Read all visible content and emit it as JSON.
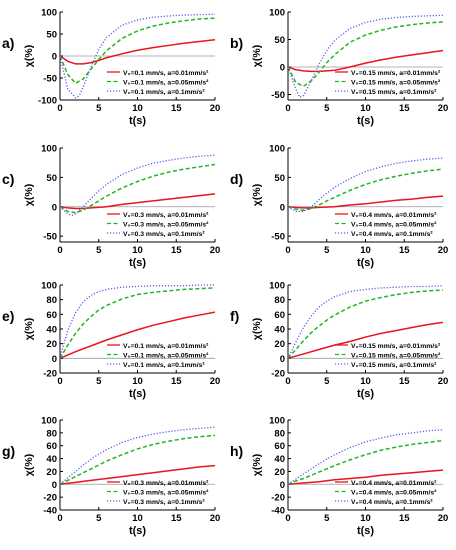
{
  "figure": {
    "colors": {
      "red": "#e8141e",
      "green": "#22b422",
      "blue": "#5a5af0",
      "axis": "#000000"
    }
  },
  "chart_data": [
    {
      "panel": "a)",
      "type": "line",
      "xlabel": "t(s)",
      "ylabel": "χ(%)",
      "xlim": [
        0,
        20
      ],
      "ylim": [
        -100,
        100
      ],
      "xticks": [
        0,
        5,
        10,
        15,
        20
      ],
      "yticks": [
        -100,
        -50,
        0,
        50,
        100
      ],
      "zero_line": true,
      "series": [
        {
          "name": "V₀=0.1 mm/s, a=0.01mm/s²",
          "style": "solid-red",
          "x": [
            0,
            1,
            2,
            3,
            4,
            5,
            6,
            8,
            10,
            12,
            14,
            16,
            18,
            20
          ],
          "y": [
            0,
            -12,
            -18,
            -18,
            -15,
            -10,
            -4,
            5,
            13,
            19,
            24,
            29,
            33,
            37
          ]
        },
        {
          "name": "V₀=0.1 mm/s, a=0.05mm/s²",
          "style": "dashed-green",
          "x": [
            0,
            1,
            2,
            3,
            4,
            5,
            6,
            8,
            10,
            12,
            14,
            16,
            18,
            20
          ],
          "y": [
            0,
            -42,
            -62,
            -52,
            -30,
            -8,
            12,
            40,
            57,
            68,
            75,
            80,
            84,
            86
          ]
        },
        {
          "name": "V₀=0.1 mm/s, a=0.1mm/s²",
          "style": "dotted-blue",
          "x": [
            0,
            1,
            2,
            2.5,
            3,
            4,
            5,
            6,
            8,
            10,
            12,
            14,
            16,
            18,
            20
          ],
          "y": [
            0,
            -75,
            -95,
            -90,
            -70,
            -25,
            15,
            42,
            70,
            82,
            88,
            91,
            93,
            94,
            95
          ]
        }
      ]
    },
    {
      "panel": "b)",
      "type": "line",
      "xlabel": "t(s)",
      "ylabel": "χ(%)",
      "xlim": [
        0,
        20
      ],
      "ylim": [
        -60,
        100
      ],
      "xticks": [
        0,
        5,
        10,
        15,
        20
      ],
      "yticks": [
        -50,
        0,
        50,
        100
      ],
      "zero_line": true,
      "series": [
        {
          "name": "V₀=0.15 mm/s, a=0.01mm/s²",
          "style": "solid-red",
          "x": [
            0,
            1,
            2,
            3,
            4,
            5,
            6,
            8,
            10,
            12,
            14,
            16,
            18,
            20
          ],
          "y": [
            0,
            -5,
            -7,
            -8,
            -8,
            -7,
            -6,
            0,
            7,
            13,
            18,
            22,
            26,
            30
          ]
        },
        {
          "name": "V₀=0.15 mm/s, a=0.05mm/s²",
          "style": "dashed-green",
          "x": [
            0,
            1,
            2,
            3,
            4,
            5,
            6,
            8,
            10,
            12,
            14,
            16,
            18,
            20
          ],
          "y": [
            0,
            -28,
            -35,
            -25,
            -10,
            8,
            22,
            45,
            58,
            67,
            73,
            77,
            80,
            82
          ]
        },
        {
          "name": "V₀=0.15 mm/s, a=0.1mm/s²",
          "style": "dotted-blue",
          "x": [
            0,
            1,
            1.5,
            2,
            3,
            4,
            5,
            6,
            8,
            10,
            12,
            14,
            16,
            18,
            20
          ],
          "y": [
            0,
            -40,
            -55,
            -52,
            -25,
            5,
            30,
            48,
            70,
            81,
            87,
            90,
            92,
            93,
            94
          ]
        }
      ]
    },
    {
      "panel": "c)",
      "type": "line",
      "xlabel": "t(s)",
      "ylabel": "χ(%)",
      "xlim": [
        0,
        20
      ],
      "ylim": [
        -60,
        100
      ],
      "xticks": [
        0,
        5,
        10,
        15,
        20
      ],
      "yticks": [
        -50,
        0,
        50,
        100
      ],
      "zero_line": true,
      "series": [
        {
          "name": "V₀=0.3 mm/s, a=0.01mm/s²",
          "style": "solid-red",
          "x": [
            0,
            1,
            2,
            3,
            4,
            6,
            8,
            10,
            12,
            14,
            16,
            18,
            20
          ],
          "y": [
            0,
            -2,
            -3,
            -3,
            -2,
            0,
            4,
            7,
            10,
            13,
            16,
            19,
            22
          ]
        },
        {
          "name": "V₀=0.3 mm/s, a=0.05mm/s²",
          "style": "dashed-green",
          "x": [
            0,
            1,
            2,
            3,
            4,
            5,
            6,
            8,
            10,
            12,
            14,
            16,
            18,
            20
          ],
          "y": [
            0,
            -8,
            -10,
            -6,
            2,
            10,
            18,
            32,
            43,
            52,
            59,
            64,
            68,
            72
          ]
        },
        {
          "name": "V₀=0.3 mm/s, a=0.1mm/s²",
          "style": "dotted-blue",
          "x": [
            0,
            1,
            1.5,
            2,
            3,
            4,
            5,
            6,
            8,
            10,
            12,
            14,
            16,
            18,
            20
          ],
          "y": [
            0,
            -12,
            -15,
            -12,
            0,
            14,
            27,
            38,
            55,
            66,
            74,
            79,
            83,
            86,
            88
          ]
        }
      ]
    },
    {
      "panel": "d)",
      "type": "line",
      "xlabel": "t(s)",
      "ylabel": "χ(%)",
      "xlim": [
        0,
        20
      ],
      "ylim": [
        -60,
        100
      ],
      "xticks": [
        0,
        5,
        10,
        15,
        20
      ],
      "yticks": [
        -50,
        0,
        50,
        100
      ],
      "zero_line": true,
      "series": [
        {
          "name": "V₀=0.4 mm/s, a=0.01mm/s²",
          "style": "solid-red",
          "x": [
            0,
            1,
            2,
            3,
            4,
            6,
            8,
            10,
            12,
            14,
            16,
            18,
            20
          ],
          "y": [
            0,
            -1,
            -2,
            -2,
            -1,
            0,
            3,
            5,
            8,
            11,
            13,
            16,
            18
          ]
        },
        {
          "name": "V₀=0.4 mm/s, a=0.05mm/s²",
          "style": "dashed-green",
          "x": [
            0,
            1,
            2,
            3,
            4,
            5,
            6,
            8,
            10,
            12,
            14,
            16,
            18,
            20
          ],
          "y": [
            0,
            -4,
            -6,
            -3,
            3,
            10,
            16,
            28,
            38,
            46,
            52,
            57,
            61,
            64
          ]
        },
        {
          "name": "V₀=0.4 mm/s, a=0.1mm/s²",
          "style": "dotted-blue",
          "x": [
            0,
            1,
            2,
            3,
            4,
            5,
            6,
            8,
            10,
            12,
            14,
            16,
            18,
            20
          ],
          "y": [
            0,
            -8,
            -8,
            0,
            12,
            23,
            33,
            48,
            60,
            68,
            74,
            78,
            81,
            83
          ]
        }
      ]
    },
    {
      "panel": "e)",
      "type": "line",
      "xlabel": "t(s)",
      "ylabel": "χ(%)",
      "xlim": [
        0,
        20
      ],
      "ylim": [
        -20,
        100
      ],
      "xticks": [
        0,
        5,
        10,
        15,
        20
      ],
      "yticks": [
        -20,
        0,
        20,
        40,
        60,
        80,
        100
      ],
      "zero_line": true,
      "series": [
        {
          "name": "V₀=0.1 mm/s, a=0.01mm/s²",
          "style": "solid-red",
          "x": [
            0,
            2,
            4,
            6,
            8,
            10,
            12,
            14,
            16,
            18,
            20
          ],
          "y": [
            0,
            9,
            17,
            25,
            32,
            39,
            45,
            50,
            55,
            59,
            63
          ]
        },
        {
          "name": "V₀=0.1 mm/s, a=0.05mm/s²",
          "style": "dashed-green",
          "x": [
            0,
            1,
            2,
            3,
            4,
            5,
            6,
            8,
            10,
            12,
            14,
            16,
            18,
            20
          ],
          "y": [
            0,
            18,
            34,
            47,
            57,
            66,
            72,
            81,
            87,
            90,
            92,
            94,
            95,
            96
          ]
        },
        {
          "name": "V₀=0.1 mm/s, a=0.1mm/s²",
          "style": "dotted-blue",
          "x": [
            0,
            0.5,
            1,
            2,
            3,
            4,
            5,
            6,
            8,
            10,
            12,
            14,
            16,
            18,
            20
          ],
          "y": [
            0,
            20,
            38,
            62,
            77,
            86,
            91,
            94,
            97,
            98,
            99,
            99,
            99,
            100,
            100
          ]
        }
      ]
    },
    {
      "panel": "f)",
      "type": "line",
      "xlabel": "t(s)",
      "ylabel": "χ(%)",
      "xlim": [
        0,
        20
      ],
      "ylim": [
        -20,
        100
      ],
      "xticks": [
        0,
        5,
        10,
        15,
        20
      ],
      "yticks": [
        -20,
        0,
        20,
        40,
        60,
        80,
        100
      ],
      "zero_line": true,
      "series": [
        {
          "name": "V₀=0.15 mm/s, a=0.01mm/s²",
          "style": "solid-red",
          "x": [
            0,
            2,
            4,
            6,
            8,
            10,
            12,
            14,
            16,
            18,
            20
          ],
          "y": [
            0,
            6,
            12,
            18,
            23,
            29,
            34,
            38,
            42,
            46,
            49
          ]
        },
        {
          "name": "V₀=0.15 mm/s, a=0.05mm/s²",
          "style": "dashed-green",
          "x": [
            0,
            1,
            2,
            3,
            4,
            5,
            6,
            8,
            10,
            12,
            14,
            16,
            18,
            20
          ],
          "y": [
            0,
            12,
            24,
            35,
            44,
            52,
            59,
            70,
            78,
            83,
            87,
            90,
            92,
            93
          ]
        },
        {
          "name": "V₀=0.15 mm/s, a=0.1mm/s²",
          "style": "dotted-blue",
          "x": [
            0,
            1,
            2,
            3,
            4,
            5,
            6,
            8,
            10,
            12,
            14,
            16,
            18,
            20
          ],
          "y": [
            0,
            22,
            42,
            58,
            70,
            78,
            84,
            91,
            94,
            96,
            97,
            98,
            98,
            99
          ]
        }
      ]
    },
    {
      "panel": "g)",
      "type": "line",
      "xlabel": "t(s)",
      "ylabel": "χ(%)",
      "xlim": [
        0,
        20
      ],
      "ylim": [
        -40,
        100
      ],
      "xticks": [
        0,
        5,
        10,
        15,
        20
      ],
      "yticks": [
        -40,
        -20,
        0,
        20,
        40,
        60,
        80,
        100
      ],
      "zero_line": true,
      "series": [
        {
          "name": "V₀=0.3 mm/s, a=0.01mm/s²",
          "style": "solid-red",
          "x": [
            0,
            2,
            4,
            6,
            8,
            10,
            12,
            14,
            16,
            18,
            20
          ],
          "y": [
            0,
            3,
            6,
            9,
            12,
            15,
            18,
            21,
            24,
            27,
            29
          ]
        },
        {
          "name": "V₀=0.3 mm/s, a=0.05mm/s²",
          "style": "dashed-green",
          "x": [
            0,
            1,
            2,
            3,
            4,
            5,
            6,
            8,
            10,
            12,
            14,
            16,
            18,
            20
          ],
          "y": [
            0,
            6,
            12,
            18,
            24,
            30,
            36,
            46,
            55,
            62,
            67,
            71,
            74,
            76
          ]
        },
        {
          "name": "V₀=0.3 mm/s, a=0.1mm/s²",
          "style": "dotted-blue",
          "x": [
            0,
            1,
            2,
            3,
            4,
            5,
            6,
            8,
            10,
            12,
            14,
            16,
            18,
            20
          ],
          "y": [
            0,
            10,
            20,
            30,
            39,
            47,
            54,
            65,
            73,
            78,
            82,
            85,
            87,
            89
          ]
        }
      ]
    },
    {
      "panel": "h)",
      "type": "line",
      "xlabel": "t(s)",
      "ylabel": "χ(%)",
      "xlim": [
        0,
        20
      ],
      "ylim": [
        -40,
        100
      ],
      "xticks": [
        0,
        5,
        10,
        15,
        20
      ],
      "yticks": [
        -40,
        -20,
        0,
        20,
        40,
        60,
        80,
        100
      ],
      "zero_line": true,
      "series": [
        {
          "name": "V₀=0.4 mm/s, a=0.01mm/s²",
          "style": "solid-red",
          "x": [
            0,
            2,
            4,
            6,
            8,
            10,
            12,
            14,
            16,
            18,
            20
          ],
          "y": [
            0,
            2,
            4,
            7,
            9,
            11,
            14,
            16,
            18,
            20,
            22
          ]
        },
        {
          "name": "V₀=0.4 mm/s, a=0.05mm/s²",
          "style": "dashed-green",
          "x": [
            0,
            1,
            2,
            3,
            4,
            5,
            6,
            8,
            10,
            12,
            14,
            16,
            18,
            20
          ],
          "y": [
            0,
            5,
            9,
            14,
            19,
            24,
            29,
            38,
            46,
            53,
            58,
            62,
            65,
            68
          ]
        },
        {
          "name": "V₀=0.4 mm/s, a=0.1mm/s²",
          "style": "dotted-blue",
          "x": [
            0,
            1,
            2,
            3,
            4,
            5,
            6,
            8,
            10,
            12,
            14,
            16,
            18,
            20
          ],
          "y": [
            0,
            8,
            16,
            24,
            32,
            39,
            46,
            57,
            66,
            72,
            77,
            80,
            83,
            85
          ]
        }
      ]
    }
  ]
}
